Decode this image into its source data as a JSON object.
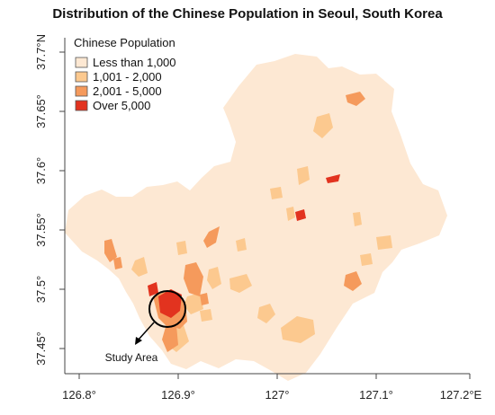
{
  "title": "Distribution of the Chinese Population in Seoul, South Korea",
  "legend": {
    "title": "Chinese Population",
    "items": [
      {
        "label": "Less than 1,000",
        "color": "#fde8d3"
      },
      {
        "label": "1,001 - 2,000",
        "color": "#fcc98f"
      },
      {
        "label": "2,001 - 5,000",
        "color": "#f59a5c"
      },
      {
        "label": "Over 5,000",
        "color": "#e2331f"
      }
    ]
  },
  "axes": {
    "x_ticks": [
      "126.8°",
      "126.9°",
      "127°",
      "127.1°",
      "127.2°E"
    ],
    "y_ticks": [
      "37.7°N",
      "37.65°",
      "37.6°",
      "37.55°",
      "37.5°",
      "37.45°"
    ]
  },
  "annotation": {
    "label": "Study Area"
  },
  "colors": {
    "base_region": "#fde8d3",
    "low": "#fcc98f",
    "mid": "#f59a5c",
    "high": "#e2331f",
    "circle": "#000000"
  }
}
